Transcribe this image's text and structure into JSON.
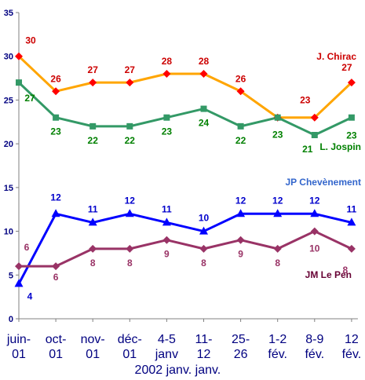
{
  "chart_data": {
    "type": "line",
    "categories": [
      [
        "juin-",
        "01"
      ],
      [
        "oct-",
        "01"
      ],
      [
        "nov-",
        "01"
      ],
      [
        "déc-",
        "01"
      ],
      [
        "4-5",
        "janv"
      ],
      [
        "11-",
        "12"
      ],
      [
        "25-",
        "26"
      ],
      [
        "1-2",
        "fév."
      ],
      [
        "8-9",
        "fév."
      ],
      [
        "12",
        "fév."
      ]
    ],
    "x_note": "2002 janv. janv.",
    "ylim": [
      0,
      35
    ],
    "yticks": [
      "0",
      "5",
      "10",
      "15",
      "20",
      "25",
      "30",
      "35"
    ],
    "grid": false,
    "series": [
      {
        "name": "J. Chirac",
        "color": "#FFA500",
        "marker_color": "#FF0000",
        "label_color": "#CC0000",
        "marker": "diamond",
        "values": [
          30,
          26,
          27,
          27,
          28,
          28,
          26,
          23,
          23,
          27
        ],
        "labels": [
          "30",
          "26",
          "27",
          "27",
          "28",
          "28",
          "26",
          "",
          "23",
          "27"
        ]
      },
      {
        "name": "L. Jospin",
        "color": "#339966",
        "marker_color": "#339966",
        "label_color": "#008000",
        "marker": "square",
        "values": [
          27,
          23,
          22,
          22,
          23,
          24,
          22,
          23,
          21,
          23
        ],
        "labels": [
          "27",
          "23",
          "22",
          "22",
          "23",
          "24",
          "22",
          "23",
          "21",
          "23"
        ]
      },
      {
        "name": "JP Chevènement",
        "color": "#0000FF",
        "marker_color": "#0000FF",
        "label_color": "#0000CC",
        "name_color": "#3366CC",
        "marker": "triangle",
        "values": [
          4,
          12,
          11,
          12,
          11,
          10,
          12,
          12,
          12,
          11
        ],
        "labels": [
          "4",
          "12",
          "11",
          "12",
          "11",
          "10",
          "12",
          "12",
          "12",
          "11"
        ]
      },
      {
        "name": "JM Le Pen",
        "color": "#993366",
        "marker_color": "#993366",
        "label_color": "#993366",
        "name_color": "#660033",
        "marker": "diamond",
        "values": [
          6,
          6,
          8,
          8,
          9,
          8,
          9,
          8,
          10,
          8
        ],
        "labels": [
          "6",
          "6",
          "8",
          "8",
          "9",
          "8",
          "9",
          "8",
          "10",
          "8"
        ]
      }
    ]
  }
}
